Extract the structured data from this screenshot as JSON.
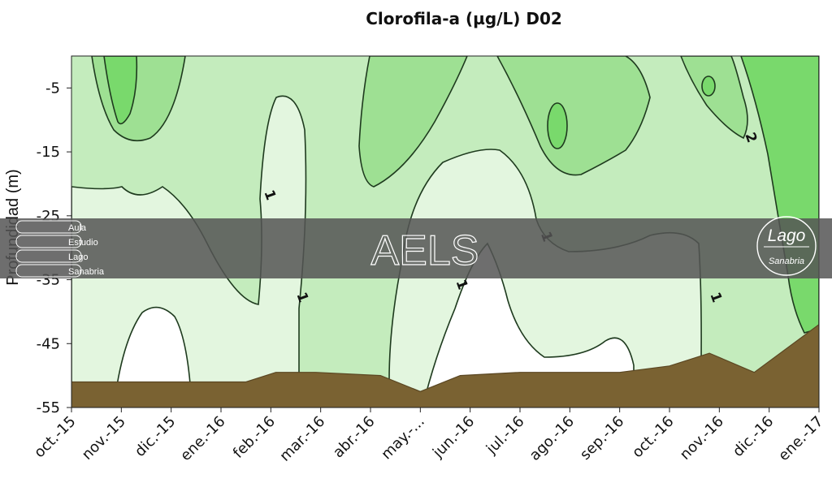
{
  "chart_data": {
    "type": "heatmap",
    "title": "Clorofila-a (µg/L) D02",
    "ylabel": "Profundidad (m)",
    "xlabel": "",
    "categories": [
      "oct.-15",
      "nov.-15",
      "dic.-15",
      "ene.-16",
      "feb.-16",
      "mar.-16",
      "abr.-16",
      "may.-...",
      "jun.-16",
      "jul.-16",
      "ago.-16",
      "sep.-16",
      "oct.-16",
      "nov.-16",
      "dic.-16",
      "ene.-17"
    ],
    "yticks": [
      "-5",
      "-15",
      "-25",
      "-35",
      "-45",
      "-55"
    ],
    "ytick_values": [
      -5,
      -15,
      -25,
      -35,
      -45,
      -55
    ],
    "ylim": [
      -55,
      0
    ],
    "contour_labels": [
      {
        "text": "1",
        "month": 3.9,
        "depth": -22
      },
      {
        "text": "1",
        "month": 4.55,
        "depth": -38
      },
      {
        "text": "1",
        "month": 7.75,
        "depth": -36
      },
      {
        "text": "1",
        "month": 9.45,
        "depth": -28.5
      },
      {
        "text": "1",
        "month": 12.85,
        "depth": -38
      },
      {
        "text": "2",
        "month": 13.55,
        "depth": -13
      }
    ],
    "bottom_depth": [
      {
        "month": 0,
        "depth": -51
      },
      {
        "month": 3.5,
        "depth": -51
      },
      {
        "month": 4.1,
        "depth": -49.5
      },
      {
        "month": 4.9,
        "depth": -49.5
      },
      {
        "month": 6.2,
        "depth": -50
      },
      {
        "month": 7.0,
        "depth": -52.5
      },
      {
        "month": 7.8,
        "depth": -50
      },
      {
        "month": 9.0,
        "depth": -49.5
      },
      {
        "month": 11.0,
        "depth": -49.5
      },
      {
        "month": 12.0,
        "depth": -48.5
      },
      {
        "month": 12.8,
        "depth": -46.5
      },
      {
        "month": 13.7,
        "depth": -49.5
      },
      {
        "month": 15.0,
        "depth": -42
      }
    ],
    "grid": false
  },
  "colors": {
    "level_0": "#ffffff",
    "level_05": "#e3f6df",
    "level_1": "#c4ecbd",
    "level_15": "#9ee093",
    "level_2": "#79d96c",
    "sediment": "#7a6232",
    "banner": "#555555"
  },
  "banner": {
    "lines": [
      "Aula",
      "Estudio",
      "Lago",
      "Sanabria"
    ],
    "center_text": "AELS",
    "logo_title": "Lago",
    "logo_subtitle": "Sanabria"
  }
}
